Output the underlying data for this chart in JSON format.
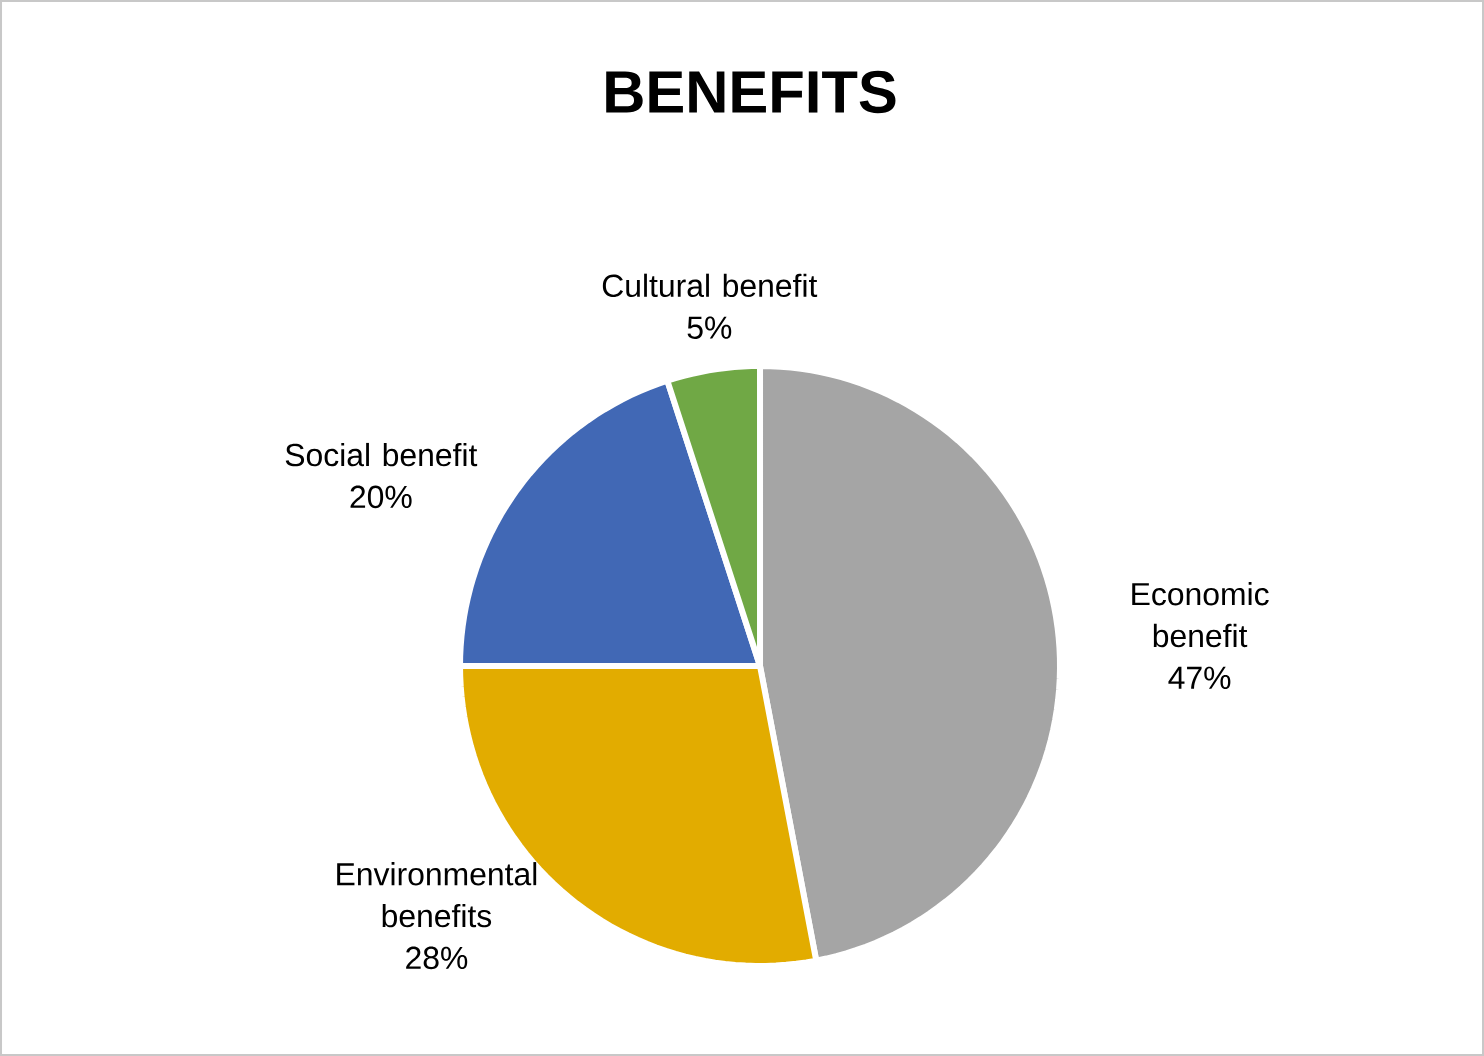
{
  "chart_data": {
    "type": "pie",
    "title": "BENEFITS",
    "categories": [
      "Economic benefit",
      "Environmental benefits",
      "Social benefit",
      "Cultural benefit"
    ],
    "values": [
      47,
      28,
      20,
      5
    ],
    "value_labels": [
      "47%",
      "28%",
      "20%",
      "5%"
    ],
    "colors": [
      "#a5a5a5",
      "#e2ac00",
      "#4168b5",
      "#70a845"
    ]
  }
}
